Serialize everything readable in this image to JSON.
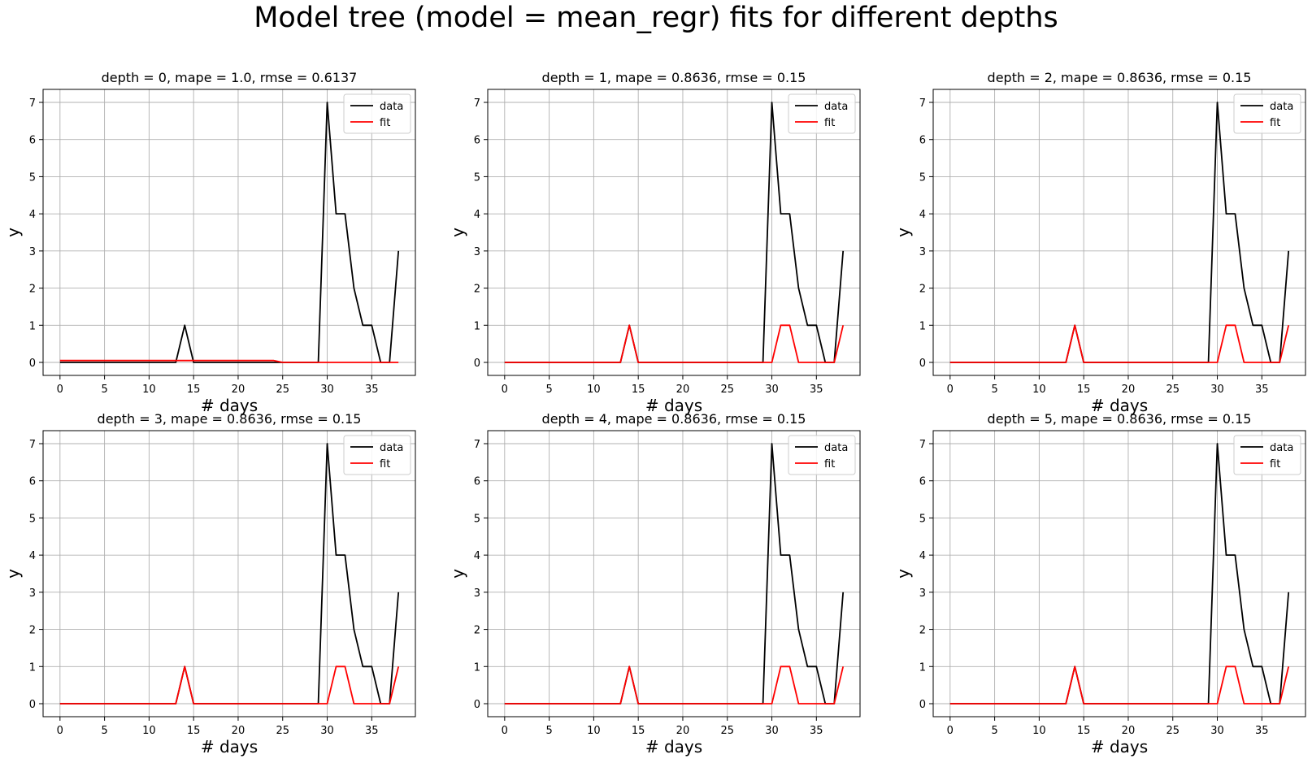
{
  "suptitle": "Model tree (model = mean_regr) fits for different depths",
  "chart_data": [
    {
      "type": "line",
      "title": "depth = 0, mape = 1.0, rmse = 0.6137",
      "xlabel": "# days",
      "ylabel": "y",
      "xlim": [
        -1.9,
        39.9
      ],
      "ylim": [
        -0.35,
        7.35
      ],
      "xticks": [
        0,
        5,
        10,
        15,
        20,
        25,
        30,
        35
      ],
      "yticks": [
        0,
        1,
        2,
        3,
        4,
        5,
        6,
        7
      ],
      "grid": true,
      "legend": "top-right",
      "x": [
        0,
        1,
        2,
        3,
        4,
        5,
        6,
        7,
        8,
        9,
        10,
        11,
        12,
        13,
        14,
        15,
        16,
        17,
        18,
        19,
        20,
        21,
        22,
        23,
        24,
        25,
        26,
        27,
        28,
        29,
        30,
        31,
        32,
        33,
        34,
        35,
        36,
        37,
        38
      ],
      "series": [
        {
          "name": "data",
          "color": "#000000",
          "values": [
            0,
            0,
            0,
            0,
            0,
            0,
            0,
            0,
            0,
            0,
            0,
            0,
            0,
            0,
            1,
            0,
            0,
            0,
            0,
            0,
            0,
            0,
            0,
            0,
            0,
            0,
            0,
            0,
            0,
            0,
            7,
            4,
            4,
            2,
            1,
            1,
            0,
            0,
            3
          ]
        },
        {
          "name": "fit",
          "color": "#ff0000",
          "values": [
            0.05,
            0.05,
            0.05,
            0.05,
            0.05,
            0.05,
            0.05,
            0.05,
            0.05,
            0.05,
            0.05,
            0.05,
            0.05,
            0.05,
            0.05,
            0.05,
            0.05,
            0.05,
            0.05,
            0.05,
            0.05,
            0.05,
            0.05,
            0.05,
            0.05,
            0,
            0,
            0,
            0,
            0,
            0,
            0,
            0,
            0,
            0,
            0,
            0,
            0,
            0
          ]
        }
      ]
    },
    {
      "type": "line",
      "title": "depth = 1, mape = 0.8636, rmse = 0.15",
      "xlabel": "# days",
      "ylabel": "y",
      "xlim": [
        -1.9,
        39.9
      ],
      "ylim": [
        -0.35,
        7.35
      ],
      "xticks": [
        0,
        5,
        10,
        15,
        20,
        25,
        30,
        35
      ],
      "yticks": [
        0,
        1,
        2,
        3,
        4,
        5,
        6,
        7
      ],
      "grid": true,
      "legend": "top-right",
      "x": [
        0,
        1,
        2,
        3,
        4,
        5,
        6,
        7,
        8,
        9,
        10,
        11,
        12,
        13,
        14,
        15,
        16,
        17,
        18,
        19,
        20,
        21,
        22,
        23,
        24,
        25,
        26,
        27,
        28,
        29,
        30,
        31,
        32,
        33,
        34,
        35,
        36,
        37,
        38
      ],
      "series": [
        {
          "name": "data",
          "color": "#000000",
          "values": [
            0,
            0,
            0,
            0,
            0,
            0,
            0,
            0,
            0,
            0,
            0,
            0,
            0,
            0,
            1,
            0,
            0,
            0,
            0,
            0,
            0,
            0,
            0,
            0,
            0,
            0,
            0,
            0,
            0,
            0,
            7,
            4,
            4,
            2,
            1,
            1,
            0,
            0,
            3
          ]
        },
        {
          "name": "fit",
          "color": "#ff0000",
          "values": [
            0,
            0,
            0,
            0,
            0,
            0,
            0,
            0,
            0,
            0,
            0,
            0,
            0,
            0,
            1,
            0,
            0,
            0,
            0,
            0,
            0,
            0,
            0,
            0,
            0,
            0,
            0,
            0,
            0,
            0,
            0,
            1,
            1,
            0,
            0,
            0,
            0,
            0,
            1
          ]
        }
      ]
    },
    {
      "type": "line",
      "title": "depth = 2, mape = 0.8636, rmse = 0.15",
      "xlabel": "# days",
      "ylabel": "y",
      "xlim": [
        -1.9,
        39.9
      ],
      "ylim": [
        -0.35,
        7.35
      ],
      "xticks": [
        0,
        5,
        10,
        15,
        20,
        25,
        30,
        35
      ],
      "yticks": [
        0,
        1,
        2,
        3,
        4,
        5,
        6,
        7
      ],
      "grid": true,
      "legend": "top-right",
      "x": [
        0,
        1,
        2,
        3,
        4,
        5,
        6,
        7,
        8,
        9,
        10,
        11,
        12,
        13,
        14,
        15,
        16,
        17,
        18,
        19,
        20,
        21,
        22,
        23,
        24,
        25,
        26,
        27,
        28,
        29,
        30,
        31,
        32,
        33,
        34,
        35,
        36,
        37,
        38
      ],
      "series": [
        {
          "name": "data",
          "color": "#000000",
          "values": [
            0,
            0,
            0,
            0,
            0,
            0,
            0,
            0,
            0,
            0,
            0,
            0,
            0,
            0,
            1,
            0,
            0,
            0,
            0,
            0,
            0,
            0,
            0,
            0,
            0,
            0,
            0,
            0,
            0,
            0,
            7,
            4,
            4,
            2,
            1,
            1,
            0,
            0,
            3
          ]
        },
        {
          "name": "fit",
          "color": "#ff0000",
          "values": [
            0,
            0,
            0,
            0,
            0,
            0,
            0,
            0,
            0,
            0,
            0,
            0,
            0,
            0,
            1,
            0,
            0,
            0,
            0,
            0,
            0,
            0,
            0,
            0,
            0,
            0,
            0,
            0,
            0,
            0,
            0,
            1,
            1,
            0,
            0,
            0,
            0,
            0,
            1
          ]
        }
      ]
    },
    {
      "type": "line",
      "title": "depth = 3, mape = 0.8636, rmse = 0.15",
      "xlabel": "# days",
      "ylabel": "y",
      "xlim": [
        -1.9,
        39.9
      ],
      "ylim": [
        -0.35,
        7.35
      ],
      "xticks": [
        0,
        5,
        10,
        15,
        20,
        25,
        30,
        35
      ],
      "yticks": [
        0,
        1,
        2,
        3,
        4,
        5,
        6,
        7
      ],
      "grid": true,
      "legend": "top-right",
      "x": [
        0,
        1,
        2,
        3,
        4,
        5,
        6,
        7,
        8,
        9,
        10,
        11,
        12,
        13,
        14,
        15,
        16,
        17,
        18,
        19,
        20,
        21,
        22,
        23,
        24,
        25,
        26,
        27,
        28,
        29,
        30,
        31,
        32,
        33,
        34,
        35,
        36,
        37,
        38
      ],
      "series": [
        {
          "name": "data",
          "color": "#000000",
          "values": [
            0,
            0,
            0,
            0,
            0,
            0,
            0,
            0,
            0,
            0,
            0,
            0,
            0,
            0,
            1,
            0,
            0,
            0,
            0,
            0,
            0,
            0,
            0,
            0,
            0,
            0,
            0,
            0,
            0,
            0,
            7,
            4,
            4,
            2,
            1,
            1,
            0,
            0,
            3
          ]
        },
        {
          "name": "fit",
          "color": "#ff0000",
          "values": [
            0,
            0,
            0,
            0,
            0,
            0,
            0,
            0,
            0,
            0,
            0,
            0,
            0,
            0,
            1,
            0,
            0,
            0,
            0,
            0,
            0,
            0,
            0,
            0,
            0,
            0,
            0,
            0,
            0,
            0,
            0,
            1,
            1,
            0,
            0,
            0,
            0,
            0,
            1
          ]
        }
      ]
    },
    {
      "type": "line",
      "title": "depth = 4, mape = 0.8636, rmse = 0.15",
      "xlabel": "# days",
      "ylabel": "y",
      "xlim": [
        -1.9,
        39.9
      ],
      "ylim": [
        -0.35,
        7.35
      ],
      "xticks": [
        0,
        5,
        10,
        15,
        20,
        25,
        30,
        35
      ],
      "yticks": [
        0,
        1,
        2,
        3,
        4,
        5,
        6,
        7
      ],
      "grid": true,
      "legend": "top-right",
      "x": [
        0,
        1,
        2,
        3,
        4,
        5,
        6,
        7,
        8,
        9,
        10,
        11,
        12,
        13,
        14,
        15,
        16,
        17,
        18,
        19,
        20,
        21,
        22,
        23,
        24,
        25,
        26,
        27,
        28,
        29,
        30,
        31,
        32,
        33,
        34,
        35,
        36,
        37,
        38
      ],
      "series": [
        {
          "name": "data",
          "color": "#000000",
          "values": [
            0,
            0,
            0,
            0,
            0,
            0,
            0,
            0,
            0,
            0,
            0,
            0,
            0,
            0,
            1,
            0,
            0,
            0,
            0,
            0,
            0,
            0,
            0,
            0,
            0,
            0,
            0,
            0,
            0,
            0,
            7,
            4,
            4,
            2,
            1,
            1,
            0,
            0,
            3
          ]
        },
        {
          "name": "fit",
          "color": "#ff0000",
          "values": [
            0,
            0,
            0,
            0,
            0,
            0,
            0,
            0,
            0,
            0,
            0,
            0,
            0,
            0,
            1,
            0,
            0,
            0,
            0,
            0,
            0,
            0,
            0,
            0,
            0,
            0,
            0,
            0,
            0,
            0,
            0,
            1,
            1,
            0,
            0,
            0,
            0,
            0,
            1
          ]
        }
      ]
    },
    {
      "type": "line",
      "title": "depth = 5, mape = 0.8636, rmse = 0.15",
      "xlabel": "# days",
      "ylabel": "y",
      "xlim": [
        -1.9,
        39.9
      ],
      "ylim": [
        -0.35,
        7.35
      ],
      "xticks": [
        0,
        5,
        10,
        15,
        20,
        25,
        30,
        35
      ],
      "yticks": [
        0,
        1,
        2,
        3,
        4,
        5,
        6,
        7
      ],
      "grid": true,
      "legend": "top-right",
      "x": [
        0,
        1,
        2,
        3,
        4,
        5,
        6,
        7,
        8,
        9,
        10,
        11,
        12,
        13,
        14,
        15,
        16,
        17,
        18,
        19,
        20,
        21,
        22,
        23,
        24,
        25,
        26,
        27,
        28,
        29,
        30,
        31,
        32,
        33,
        34,
        35,
        36,
        37,
        38
      ],
      "series": [
        {
          "name": "data",
          "color": "#000000",
          "values": [
            0,
            0,
            0,
            0,
            0,
            0,
            0,
            0,
            0,
            0,
            0,
            0,
            0,
            0,
            1,
            0,
            0,
            0,
            0,
            0,
            0,
            0,
            0,
            0,
            0,
            0,
            0,
            0,
            0,
            0,
            7,
            4,
            4,
            2,
            1,
            1,
            0,
            0,
            3
          ]
        },
        {
          "name": "fit",
          "color": "#ff0000",
          "values": [
            0,
            0,
            0,
            0,
            0,
            0,
            0,
            0,
            0,
            0,
            0,
            0,
            0,
            0,
            1,
            0,
            0,
            0,
            0,
            0,
            0,
            0,
            0,
            0,
            0,
            0,
            0,
            0,
            0,
            0,
            0,
            1,
            1,
            0,
            0,
            0,
            0,
            0,
            1
          ]
        }
      ]
    }
  ]
}
